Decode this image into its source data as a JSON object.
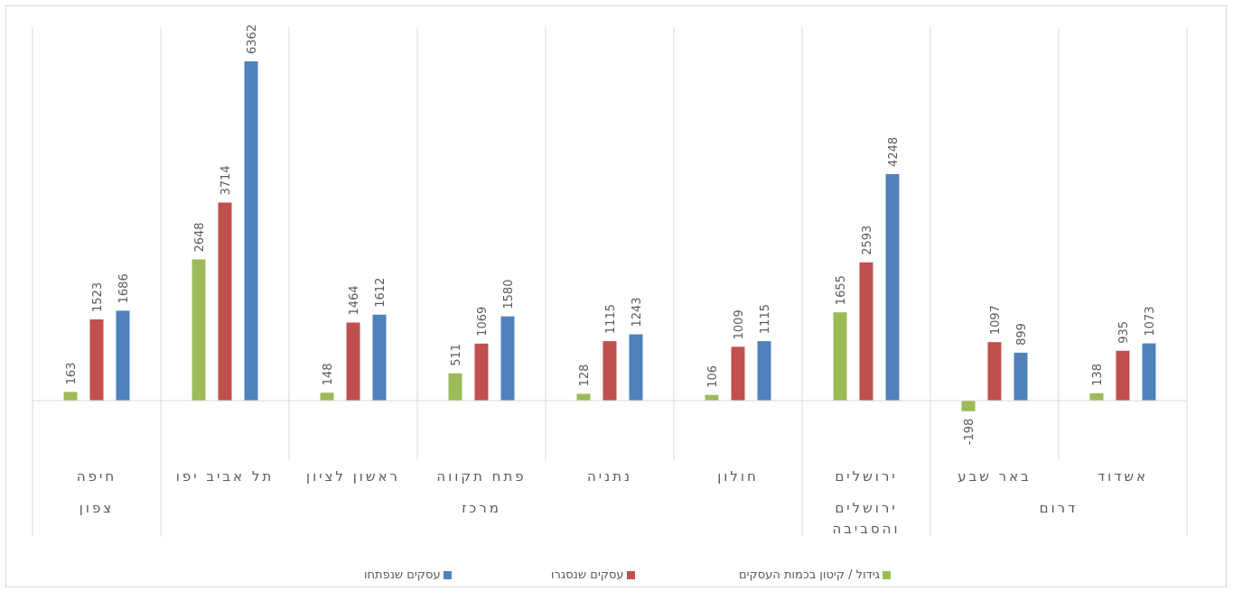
{
  "chart_data": {
    "type": "bar",
    "ylim": [
      -500,
      7000
    ],
    "grid": false,
    "legend_position": "bottom",
    "categories": [
      {
        "label": "חיפה",
        "group": "צפון"
      },
      {
        "label": "תל אביב יפו",
        "group": "מרכז"
      },
      {
        "label": "ראשון לציון",
        "group": "מרכז"
      },
      {
        "label": "פתח תקווה",
        "group": "מרכז"
      },
      {
        "label": "נתניה",
        "group": "מרכז"
      },
      {
        "label": "חולון",
        "group": "מרכז"
      },
      {
        "label": "ירושלים",
        "group": "ירושלים והסביבה"
      },
      {
        "label": "באר שבע",
        "group": "דרום"
      },
      {
        "label": "אשדוד",
        "group": "דרום"
      }
    ],
    "groups": [
      {
        "name": "צפון",
        "lines": [
          "צפון"
        ]
      },
      {
        "name": "מרכז",
        "lines": [
          "מרכז"
        ]
      },
      {
        "name": "ירושלים והסביבה",
        "lines": [
          "ירושלים",
          "והסביבה"
        ]
      },
      {
        "name": "דרום",
        "lines": [
          "דרום"
        ]
      }
    ],
    "series": [
      {
        "name": "גידול / קיטון בכמות העסקים",
        "color": "#9BBB59",
        "values": [
          163,
          2648,
          148,
          511,
          128,
          106,
          1655,
          -198,
          138
        ]
      },
      {
        "name": "עסקים שנסגרו",
        "color": "#C0504D",
        "values": [
          1523,
          3714,
          1464,
          1069,
          1115,
          1009,
          2593,
          1097,
          935
        ]
      },
      {
        "name": "עסקים שנפתחו",
        "color": "#4F81BD",
        "values": [
          1686,
          6362,
          1612,
          1580,
          1243,
          1115,
          4248,
          899,
          1073
        ]
      }
    ]
  }
}
